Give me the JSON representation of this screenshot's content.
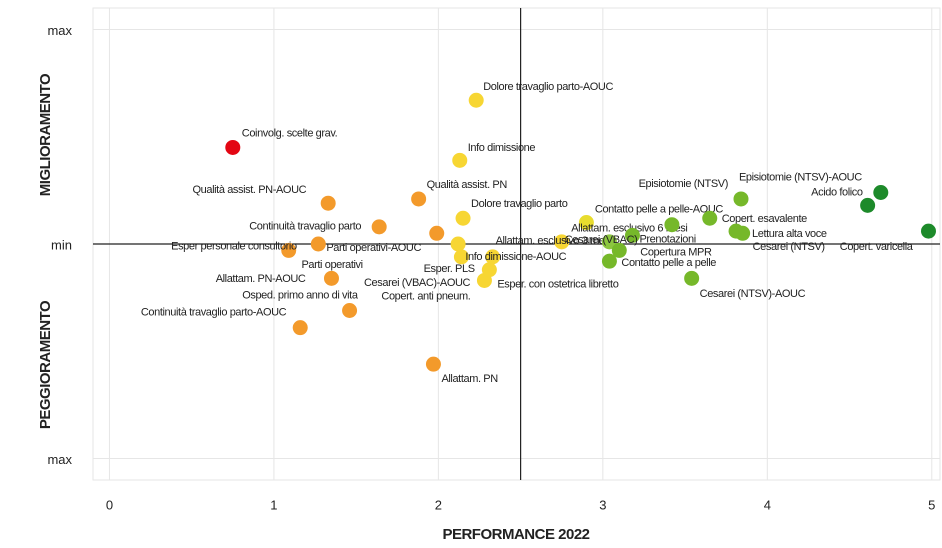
{
  "chart_data": {
    "type": "scatter",
    "x_label": "PERFORMANCE 2022",
    "y_label_top": "MIGLIORAMENTO",
    "y_label_bottom": "PEGGIORAMENTO",
    "xlim": [
      -0.1,
      5.05
    ],
    "xticks": [
      0,
      1,
      2,
      3,
      4,
      5
    ],
    "ylim": [
      -1.1,
      1.1
    ],
    "yticks": [
      {
        "value": 1,
        "label": "max"
      },
      {
        "value": 0,
        "label": "min"
      },
      {
        "value": -1,
        "label": "max"
      }
    ],
    "grid": true,
    "vline": 2.5,
    "hline": 0,
    "points": [
      {
        "label": "Dolore travaglio parto-AOUC",
        "x": 2.23,
        "y": 0.67,
        "color": "#f7d633"
      },
      {
        "label": "Coinvolg. scelte grav.",
        "x": 0.75,
        "y": 0.45,
        "color": "#e30613"
      },
      {
        "label": "Info dimissione",
        "x": 2.13,
        "y": 0.39,
        "color": "#f7d633"
      },
      {
        "label": "Qualità assist. PN-AOUC",
        "x": 1.33,
        "y": 0.19,
        "color": "#f39a2b"
      },
      {
        "label": "Qualità assist. PN",
        "x": 1.88,
        "y": 0.21,
        "color": "#f39a2b"
      },
      {
        "label": "Dolore travaglio parto",
        "x": 2.15,
        "y": 0.12,
        "color": "#f7d633"
      },
      {
        "label": "Continuità travaglio parto",
        "x": 1.64,
        "y": 0.08,
        "color": "#f39a2b"
      },
      {
        "label": "Esper personale consultorio",
        "x": 1.09,
        "y": -0.03,
        "color": "#f39a2b"
      },
      {
        "label": "Parti operativi-AOUC",
        "x": 1.27,
        "y": 0.0,
        "color": "#f39a2b"
      },
      {
        "label": "Parti operativi",
        "x": 1.99,
        "y": 0.05,
        "color": "#f39a2b"
      },
      {
        "label": "Allattam. PN-AOUC",
        "x": 1.35,
        "y": -0.16,
        "color": "#f39a2b"
      },
      {
        "label": "Osped. primo anno di vita",
        "x": 1.46,
        "y": -0.31,
        "color": "#f39a2b"
      },
      {
        "label": "Continuità travaglio parto-AOUC",
        "x": 1.16,
        "y": -0.39,
        "color": "#f39a2b"
      },
      {
        "label": "Copert. anti pneum.",
        "x": 2.28,
        "y": -0.17,
        "color": "#f7d633"
      },
      {
        "label": "Esper. con ostetrica libretto",
        "x": 2.31,
        "y": -0.12,
        "color": "#f7d633"
      },
      {
        "label": "Esper. PLS",
        "x": 2.33,
        "y": -0.06,
        "color": "#f7d633"
      },
      {
        "label": "Info dimissione-AOUC",
        "x": 2.14,
        "y": -0.06,
        "color": "#f7d633"
      },
      {
        "label": "Cesarei (VBAC)-AOUC",
        "x": 2.12,
        "y": 0.0,
        "color": "#f7d633"
      },
      {
        "label": "Allattam. esclusivo 3 mesi",
        "x": 2.75,
        "y": 0.01,
        "color": "#f7d633"
      },
      {
        "label": "Allattam. esclusivo 6 mesi",
        "x": 2.9,
        "y": 0.1,
        "color": "#e8dc2e"
      },
      {
        "label": "Contatto pelle a pelle-AOUC",
        "x": 3.42,
        "y": 0.09,
        "color": "#76b82a"
      },
      {
        "label": "Prenotazioni",
        "x": 3.18,
        "y": 0.04,
        "color": "#76b82a"
      },
      {
        "label": "Cesarei (VBAC)",
        "x": 3.04,
        "y": 0.01,
        "color": "#8cc63f"
      },
      {
        "label": "Copertura MPR",
        "x": 3.1,
        "y": -0.03,
        "color": "#76b82a"
      },
      {
        "label": "Contatto pelle a pelle",
        "x": 3.04,
        "y": -0.08,
        "color": "#76b82a"
      },
      {
        "label": "Cesarei (NTSV)-AOUC",
        "x": 3.54,
        "y": -0.16,
        "color": "#76b82a"
      },
      {
        "label": "Episiotomie (NTSV)",
        "x": 3.84,
        "y": 0.21,
        "color": "#76b82a"
      },
      {
        "label": "Copert. esavalente",
        "x": 3.65,
        "y": 0.12,
        "color": "#76b82a"
      },
      {
        "label": "Lettura alta voce",
        "x": 3.81,
        "y": 0.06,
        "color": "#76b82a"
      },
      {
        "label": "Cesarei (NTSV)",
        "x": 3.85,
        "y": 0.05,
        "color": "#76b82a"
      },
      {
        "label": "Episiotomie (NTSV)-AOUC",
        "x": 4.69,
        "y": 0.24,
        "color": "#1d8a2a"
      },
      {
        "label": "Acido folico",
        "x": 4.61,
        "y": 0.18,
        "color": "#1d8a2a"
      },
      {
        "label": "Copert. varicella",
        "x": 4.98,
        "y": 0.06,
        "color": "#1d8a2a"
      },
      {
        "label": "Allattam. PN",
        "x": 1.97,
        "y": -0.56,
        "color": "#f39a2b"
      }
    ]
  }
}
